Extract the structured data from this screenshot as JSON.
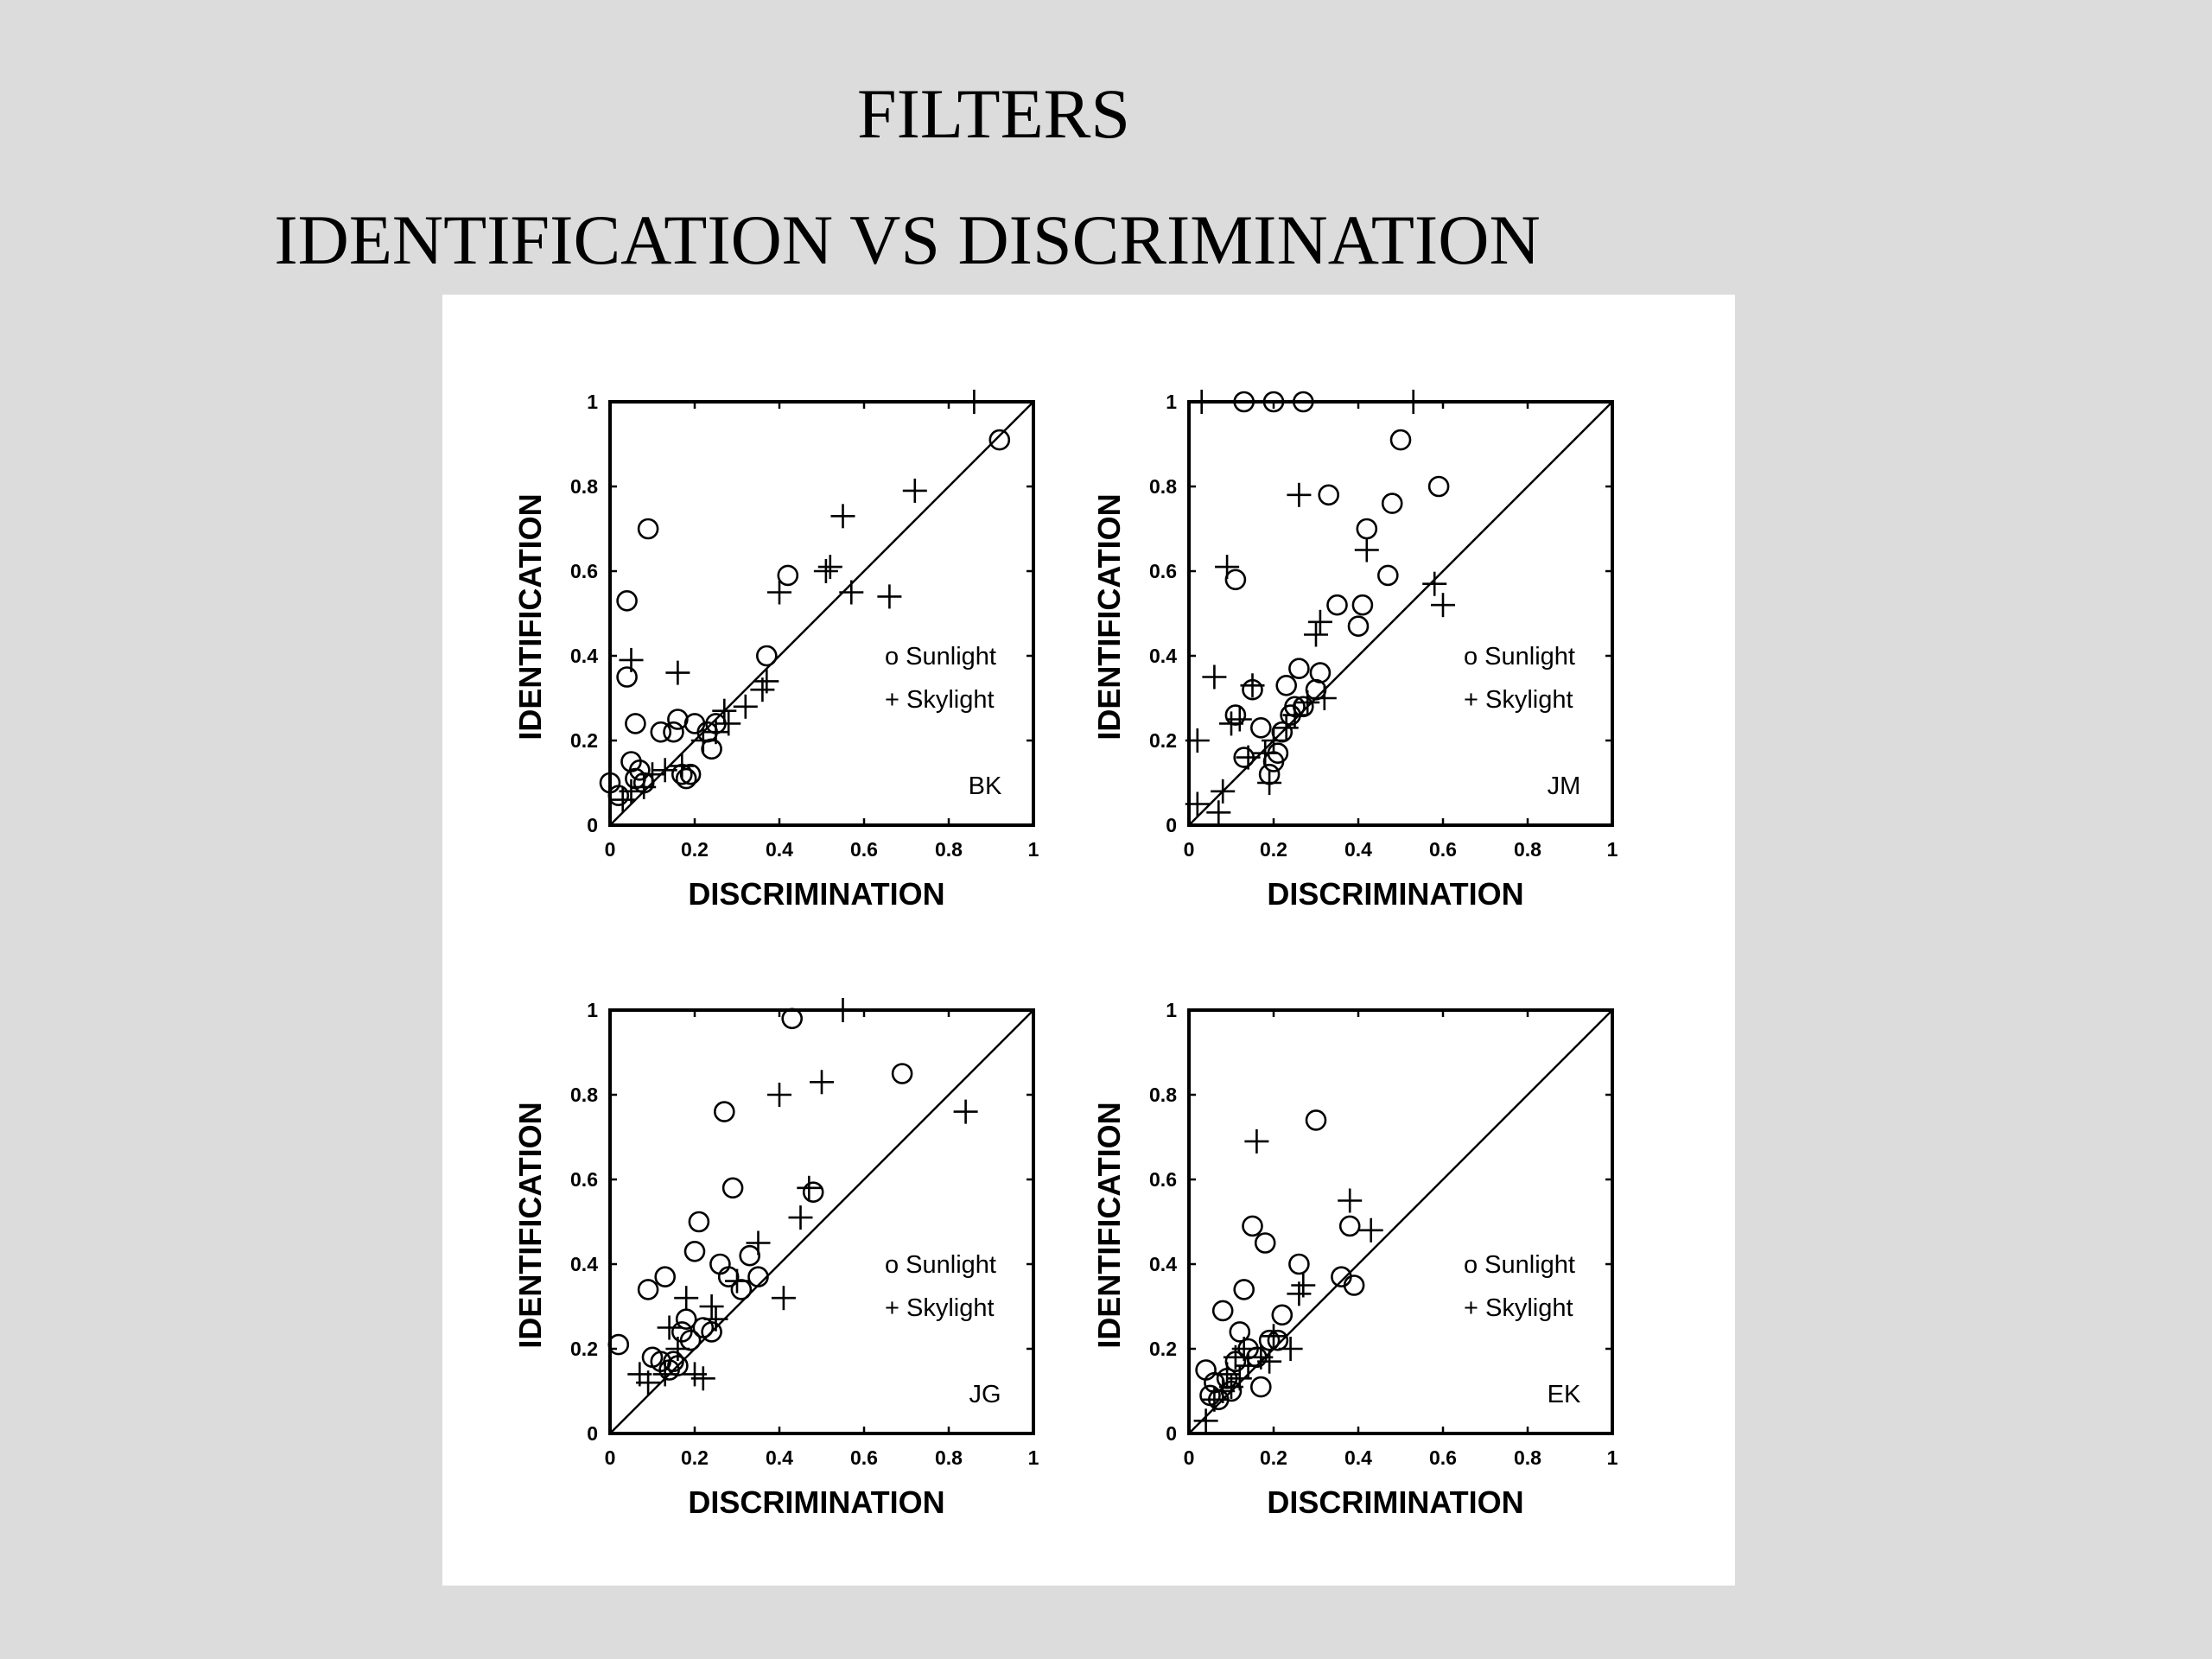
{
  "titles": {
    "line1": "FILTERS",
    "line2": "IDENTIFICATION VS DISCRIMINATION"
  },
  "chart_data": [
    {
      "type": "scatter",
      "panel_tag": "BK",
      "xlabel": "DISCRIMINATION",
      "ylabel": "IDENTIFICATION",
      "xlim": [
        0,
        1
      ],
      "ylim": [
        0,
        1
      ],
      "xticks": [
        "0",
        "0.2",
        "0.4",
        "0.6",
        "0.8",
        "1"
      ],
      "yticks": [
        "0",
        "0.2",
        "0.4",
        "0.6",
        "0.8",
        "1"
      ],
      "reference_line": "y = x",
      "legend": [
        "o Sunlight",
        "+ Skylight"
      ],
      "series": [
        {
          "name": "Sunlight",
          "marker": "circle",
          "points": [
            [
              0.0,
              0.1
            ],
            [
              0.02,
              0.07
            ],
            [
              0.04,
              0.35
            ],
            [
              0.04,
              0.53
            ],
            [
              0.05,
              0.15
            ],
            [
              0.06,
              0.11
            ],
            [
              0.06,
              0.24
            ],
            [
              0.07,
              0.13
            ],
            [
              0.08,
              0.1
            ],
            [
              0.09,
              0.7
            ],
            [
              0.12,
              0.22
            ],
            [
              0.15,
              0.22
            ],
            [
              0.16,
              0.25
            ],
            [
              0.17,
              0.12
            ],
            [
              0.18,
              0.11
            ],
            [
              0.19,
              0.12
            ],
            [
              0.2,
              0.24
            ],
            [
              0.23,
              0.22
            ],
            [
              0.24,
              0.18
            ],
            [
              0.25,
              0.24
            ],
            [
              0.37,
              0.4
            ],
            [
              0.42,
              0.59
            ],
            [
              0.92,
              0.91
            ]
          ]
        },
        {
          "name": "Skylight",
          "marker": "plus",
          "points": [
            [
              0.03,
              0.06
            ],
            [
              0.05,
              0.08
            ],
            [
              0.05,
              0.39
            ],
            [
              0.08,
              0.09
            ],
            [
              0.1,
              0.12
            ],
            [
              0.13,
              0.13
            ],
            [
              0.16,
              0.36
            ],
            [
              0.17,
              0.14
            ],
            [
              0.22,
              0.2
            ],
            [
              0.25,
              0.22
            ],
            [
              0.27,
              0.27
            ],
            [
              0.28,
              0.24
            ],
            [
              0.32,
              0.28
            ],
            [
              0.36,
              0.32
            ],
            [
              0.37,
              0.34
            ],
            [
              0.4,
              0.55
            ],
            [
              0.51,
              0.6
            ],
            [
              0.52,
              0.61
            ],
            [
              0.55,
              0.73
            ],
            [
              0.57,
              0.55
            ],
            [
              0.66,
              0.54
            ],
            [
              0.72,
              0.79
            ],
            [
              0.86,
              1.0
            ]
          ]
        }
      ]
    },
    {
      "type": "scatter",
      "panel_tag": "JM",
      "xlabel": "DISCRIMINATION",
      "ylabel": "IDENTIFICATION",
      "xlim": [
        0,
        1
      ],
      "ylim": [
        0,
        1
      ],
      "xticks": [
        "0",
        "0.2",
        "0.4",
        "0.6",
        "0.8",
        "1"
      ],
      "yticks": [
        "0",
        "0.2",
        "0.4",
        "0.6",
        "0.8",
        "1"
      ],
      "reference_line": "y = x",
      "legend": [
        "o Sunlight",
        "+ Skylight"
      ],
      "series": [
        {
          "name": "Sunlight",
          "marker": "circle",
          "points": [
            [
              0.11,
              0.26
            ],
            [
              0.11,
              0.58
            ],
            [
              0.13,
              0.16
            ],
            [
              0.13,
              1.0
            ],
            [
              0.15,
              0.32
            ],
            [
              0.17,
              0.23
            ],
            [
              0.19,
              0.12
            ],
            [
              0.2,
              0.15
            ],
            [
              0.2,
              1.0
            ],
            [
              0.21,
              0.17
            ],
            [
              0.22,
              0.22
            ],
            [
              0.23,
              0.33
            ],
            [
              0.24,
              0.26
            ],
            [
              0.25,
              0.28
            ],
            [
              0.26,
              0.37
            ],
            [
              0.27,
              0.28
            ],
            [
              0.27,
              1.0
            ],
            [
              0.3,
              0.32
            ],
            [
              0.31,
              0.36
            ],
            [
              0.33,
              0.78
            ],
            [
              0.35,
              0.52
            ],
            [
              0.4,
              0.47
            ],
            [
              0.41,
              0.52
            ],
            [
              0.42,
              0.7
            ],
            [
              0.47,
              0.59
            ],
            [
              0.48,
              0.76
            ],
            [
              0.5,
              0.91
            ],
            [
              0.59,
              0.8
            ]
          ]
        },
        {
          "name": "Skylight",
          "marker": "plus",
          "points": [
            [
              0.02,
              0.05
            ],
            [
              0.02,
              0.2
            ],
            [
              0.03,
              1.0
            ],
            [
              0.06,
              0.35
            ],
            [
              0.07,
              0.03
            ],
            [
              0.08,
              0.08
            ],
            [
              0.09,
              0.61
            ],
            [
              0.1,
              0.24
            ],
            [
              0.12,
              0.25
            ],
            [
              0.14,
              0.16
            ],
            [
              0.15,
              0.33
            ],
            [
              0.18,
              0.17
            ],
            [
              0.19,
              0.1
            ],
            [
              0.2,
              0.2
            ],
            [
              0.23,
              0.23
            ],
            [
              0.25,
              0.26
            ],
            [
              0.26,
              0.78
            ],
            [
              0.28,
              0.29
            ],
            [
              0.3,
              0.45
            ],
            [
              0.31,
              0.48
            ],
            [
              0.32,
              0.3
            ],
            [
              0.42,
              0.65
            ],
            [
              0.53,
              1.0
            ],
            [
              0.58,
              0.57
            ],
            [
              0.6,
              0.52
            ]
          ]
        }
      ]
    },
    {
      "type": "scatter",
      "panel_tag": "JG",
      "xlabel": "DISCRIMINATION",
      "ylabel": "IDENTIFICATION",
      "xlim": [
        0,
        1
      ],
      "ylim": [
        0,
        1
      ],
      "xticks": [
        "0",
        "0.2",
        "0.4",
        "0.6",
        "0.8",
        "1"
      ],
      "yticks": [
        "0",
        "0.2",
        "0.4",
        "0.6",
        "0.8",
        "1"
      ],
      "reference_line": "y = x",
      "legend": [
        "o Sunlight",
        "+ Skylight"
      ],
      "series": [
        {
          "name": "Sunlight",
          "marker": "circle",
          "points": [
            [
              0.02,
              0.21
            ],
            [
              0.09,
              0.34
            ],
            [
              0.1,
              0.18
            ],
            [
              0.12,
              0.17
            ],
            [
              0.13,
              0.37
            ],
            [
              0.14,
              0.15
            ],
            [
              0.15,
              0.17
            ],
            [
              0.16,
              0.16
            ],
            [
              0.17,
              0.24
            ],
            [
              0.18,
              0.27
            ],
            [
              0.19,
              0.22
            ],
            [
              0.2,
              0.43
            ],
            [
              0.21,
              0.5
            ],
            [
              0.22,
              0.25
            ],
            [
              0.24,
              0.24
            ],
            [
              0.26,
              0.4
            ],
            [
              0.27,
              0.76
            ],
            [
              0.28,
              0.37
            ],
            [
              0.29,
              0.58
            ],
            [
              0.31,
              0.34
            ],
            [
              0.33,
              0.42
            ],
            [
              0.35,
              0.37
            ],
            [
              0.43,
              0.98
            ],
            [
              0.48,
              0.57
            ],
            [
              0.69,
              0.85
            ]
          ]
        },
        {
          "name": "Skylight",
          "marker": "plus",
          "points": [
            [
              0.07,
              0.14
            ],
            [
              0.09,
              0.12
            ],
            [
              0.13,
              0.14
            ],
            [
              0.14,
              0.25
            ],
            [
              0.16,
              0.2
            ],
            [
              0.18,
              0.32
            ],
            [
              0.2,
              0.14
            ],
            [
              0.22,
              0.13
            ],
            [
              0.24,
              0.3
            ],
            [
              0.25,
              0.27
            ],
            [
              0.3,
              0.36
            ],
            [
              0.35,
              0.45
            ],
            [
              0.4,
              0.8
            ],
            [
              0.41,
              0.32
            ],
            [
              0.45,
              0.51
            ],
            [
              0.47,
              0.58
            ],
            [
              0.5,
              0.83
            ],
            [
              0.55,
              1.0
            ],
            [
              0.84,
              0.76
            ]
          ]
        }
      ]
    },
    {
      "type": "scatter",
      "panel_tag": "EK",
      "xlabel": "DISCRIMINATION",
      "ylabel": "IDENTIFICATION",
      "xlim": [
        0,
        1
      ],
      "ylim": [
        0,
        1
      ],
      "xticks": [
        "0",
        "0.2",
        "0.4",
        "0.6",
        "0.8",
        "1"
      ],
      "yticks": [
        "0",
        "0.2",
        "0.4",
        "0.6",
        "0.8",
        "1"
      ],
      "reference_line": "y = x",
      "legend": [
        "o Sunlight",
        "+ Skylight"
      ],
      "series": [
        {
          "name": "Sunlight",
          "marker": "circle",
          "points": [
            [
              0.04,
              0.15
            ],
            [
              0.05,
              0.09
            ],
            [
              0.06,
              0.12
            ],
            [
              0.07,
              0.08
            ],
            [
              0.08,
              0.29
            ],
            [
              0.09,
              0.13
            ],
            [
              0.1,
              0.1
            ],
            [
              0.11,
              0.17
            ],
            [
              0.12,
              0.24
            ],
            [
              0.13,
              0.34
            ],
            [
              0.14,
              0.2
            ],
            [
              0.15,
              0.49
            ],
            [
              0.16,
              0.18
            ],
            [
              0.17,
              0.11
            ],
            [
              0.18,
              0.45
            ],
            [
              0.19,
              0.22
            ],
            [
              0.21,
              0.22
            ],
            [
              0.22,
              0.28
            ],
            [
              0.26,
              0.4
            ],
            [
              0.3,
              0.74
            ],
            [
              0.36,
              0.37
            ],
            [
              0.38,
              0.49
            ],
            [
              0.39,
              0.35
            ]
          ]
        },
        {
          "name": "Skylight",
          "marker": "plus",
          "points": [
            [
              0.04,
              0.03
            ],
            [
              0.06,
              0.08
            ],
            [
              0.08,
              0.1
            ],
            [
              0.09,
              0.14
            ],
            [
              0.1,
              0.11
            ],
            [
              0.11,
              0.18
            ],
            [
              0.12,
              0.13
            ],
            [
              0.13,
              0.2
            ],
            [
              0.14,
              0.16
            ],
            [
              0.16,
              0.69
            ],
            [
              0.17,
              0.18
            ],
            [
              0.19,
              0.17
            ],
            [
              0.2,
              0.23
            ],
            [
              0.24,
              0.2
            ],
            [
              0.26,
              0.33
            ],
            [
              0.27,
              0.35
            ],
            [
              0.38,
              0.55
            ],
            [
              0.43,
              0.48
            ]
          ]
        }
      ]
    }
  ]
}
